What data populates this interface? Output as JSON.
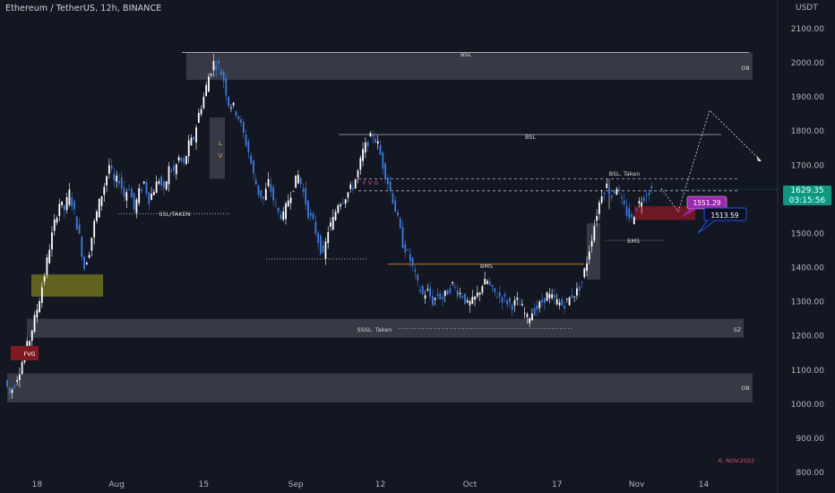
{
  "header": {
    "symbol_title": "Ethereum / TetherUS, 12h, BINANCE",
    "currency": "USDT"
  },
  "last_price": {
    "value": "1629.35",
    "countdown": "03:15:56"
  },
  "annotations": {
    "bsl_top": "BSL",
    "ob_top": "OB",
    "bsl_mid": "BSL",
    "bsl_taken": "BSL. Taken",
    "fvg_mid": "F V G",
    "ssl_taken": "SSL/TAKEN",
    "bms_mid": "BMS",
    "bms_right": "BMS",
    "sssl_taken": "SSSL. Taken",
    "sz": "SZ",
    "fvg_left": "FVG",
    "ob_bottom": "OB",
    "lv_l": "L",
    "lv_v": "V",
    "label_1551": "1551.29",
    "label_1513": "1513.59",
    "date_note": "6. NOV.2022"
  },
  "colors": {
    "background": "#131722",
    "bull": "#ffffff",
    "bear": "#3d7be0",
    "accent_purple": "#9c27b0",
    "accent_blue": "#1e53e5",
    "last_price": "#089981",
    "fvg_red": "#801922",
    "yellow_zone": "#6b6a20"
  },
  "chart_data": {
    "type": "candlestick",
    "title": "Ethereum / TetherUS, 12h, BINANCE",
    "ylabel": "USDT",
    "ylim": [
      780,
      2150
    ],
    "y_ticks": [
      "2100.00",
      "2000.00",
      "1900.00",
      "1800.00",
      "1700.00",
      "1600.00",
      "1500.00",
      "1400.00",
      "1300.00",
      "1200.00",
      "1100.00",
      "1000.00",
      "900.00",
      "800.00"
    ],
    "x_ticks": [
      "18",
      "Aug",
      "15",
      "Sep",
      "12",
      "Oct",
      "17",
      "Nov",
      "14"
    ],
    "last_price": 1629.35,
    "path_points": [
      [
        0,
        1070
      ],
      [
        2,
        1030
      ],
      [
        4,
        1060
      ],
      [
        6,
        1100
      ],
      [
        8,
        1150
      ],
      [
        10,
        1190
      ],
      [
        12,
        1250
      ],
      [
        14,
        1310
      ],
      [
        16,
        1380
      ],
      [
        18,
        1460
      ],
      [
        20,
        1530
      ],
      [
        22,
        1590
      ],
      [
        24,
        1570
      ],
      [
        26,
        1620
      ],
      [
        28,
        1560
      ],
      [
        30,
        1490
      ],
      [
        32,
        1400
      ],
      [
        34,
        1450
      ],
      [
        36,
        1530
      ],
      [
        38,
        1590
      ],
      [
        40,
        1640
      ],
      [
        42,
        1700
      ],
      [
        44,
        1650
      ],
      [
        46,
        1660
      ],
      [
        48,
        1610
      ],
      [
        50,
        1640
      ],
      [
        52,
        1570
      ],
      [
        54,
        1620
      ],
      [
        56,
        1650
      ],
      [
        58,
        1600
      ],
      [
        60,
        1630
      ],
      [
        62,
        1660
      ],
      [
        64,
        1620
      ],
      [
        66,
        1690
      ],
      [
        68,
        1680
      ],
      [
        70,
        1720
      ],
      [
        72,
        1700
      ],
      [
        74,
        1760
      ],
      [
        76,
        1780
      ],
      [
        78,
        1850
      ],
      [
        80,
        1900
      ],
      [
        82,
        1960
      ],
      [
        84,
        2000
      ],
      [
        86,
        1990
      ],
      [
        88,
        1950
      ],
      [
        90,
        1880
      ],
      [
        92,
        1870
      ],
      [
        94,
        1840
      ],
      [
        96,
        1790
      ],
      [
        98,
        1740
      ],
      [
        100,
        1670
      ],
      [
        102,
        1620
      ],
      [
        104,
        1600
      ],
      [
        106,
        1650
      ],
      [
        108,
        1600
      ],
      [
        110,
        1560
      ],
      [
        112,
        1550
      ],
      [
        114,
        1600
      ],
      [
        116,
        1640
      ],
      [
        118,
        1670
      ],
      [
        120,
        1620
      ],
      [
        122,
        1560
      ],
      [
        124,
        1530
      ],
      [
        126,
        1480
      ],
      [
        128,
        1430
      ],
      [
        130,
        1510
      ],
      [
        132,
        1540
      ],
      [
        134,
        1590
      ],
      [
        136,
        1600
      ],
      [
        138,
        1620
      ],
      [
        140,
        1640
      ],
      [
        142,
        1680
      ],
      [
        144,
        1740
      ],
      [
        146,
        1770
      ],
      [
        148,
        1790
      ],
      [
        150,
        1760
      ],
      [
        152,
        1700
      ],
      [
        154,
        1650
      ],
      [
        156,
        1600
      ],
      [
        158,
        1540
      ],
      [
        160,
        1470
      ],
      [
        162,
        1440
      ],
      [
        164,
        1400
      ],
      [
        166,
        1350
      ],
      [
        168,
        1320
      ],
      [
        170,
        1330
      ],
      [
        172,
        1300
      ],
      [
        174,
        1320
      ],
      [
        176,
        1310
      ],
      [
        178,
        1330
      ],
      [
        180,
        1350
      ],
      [
        182,
        1330
      ],
      [
        184,
        1320
      ],
      [
        186,
        1290
      ],
      [
        188,
        1300
      ],
      [
        190,
        1320
      ],
      [
        192,
        1350
      ],
      [
        194,
        1360
      ],
      [
        196,
        1330
      ],
      [
        198,
        1320
      ],
      [
        200,
        1310
      ],
      [
        202,
        1300
      ],
      [
        204,
        1290
      ],
      [
        206,
        1300
      ],
      [
        208,
        1280
      ],
      [
        210,
        1250
      ],
      [
        212,
        1270
      ],
      [
        214,
        1280
      ],
      [
        216,
        1300
      ],
      [
        218,
        1320
      ],
      [
        220,
        1310
      ],
      [
        222,
        1300
      ],
      [
        224,
        1290
      ],
      [
        226,
        1300
      ],
      [
        228,
        1320
      ],
      [
        230,
        1330
      ],
      [
        232,
        1360
      ],
      [
        234,
        1420
      ],
      [
        236,
        1490
      ],
      [
        238,
        1560
      ],
      [
        240,
        1620
      ],
      [
        242,
        1640
      ],
      [
        244,
        1610
      ],
      [
        246,
        1640
      ],
      [
        248,
        1590
      ],
      [
        250,
        1560
      ],
      [
        252,
        1540
      ],
      [
        254,
        1580
      ],
      [
        256,
        1600
      ],
      [
        258,
        1620
      ],
      [
        260,
        1629
      ]
    ],
    "zones": [
      {
        "label": "OB",
        "from": 1950,
        "to": 2030
      },
      {
        "label": "OB",
        "from": 1005,
        "to": 1090
      },
      {
        "label": "SZ",
        "from": 1195,
        "to": 1250
      },
      {
        "label": "FVG",
        "from": 1540,
        "to": 1580
      }
    ],
    "levels": [
      {
        "label": "BSL",
        "price": 2030
      },
      {
        "label": "BSL",
        "price": 1790
      },
      {
        "label": "BSL. Taken",
        "price": 1660
      },
      {
        "label": "BMS",
        "price": 1410
      },
      {
        "label": "SSSL. Taken",
        "price": 1222
      },
      {
        "label": "SSL/TAKEN",
        "price": 1558
      }
    ],
    "grid": false
  }
}
